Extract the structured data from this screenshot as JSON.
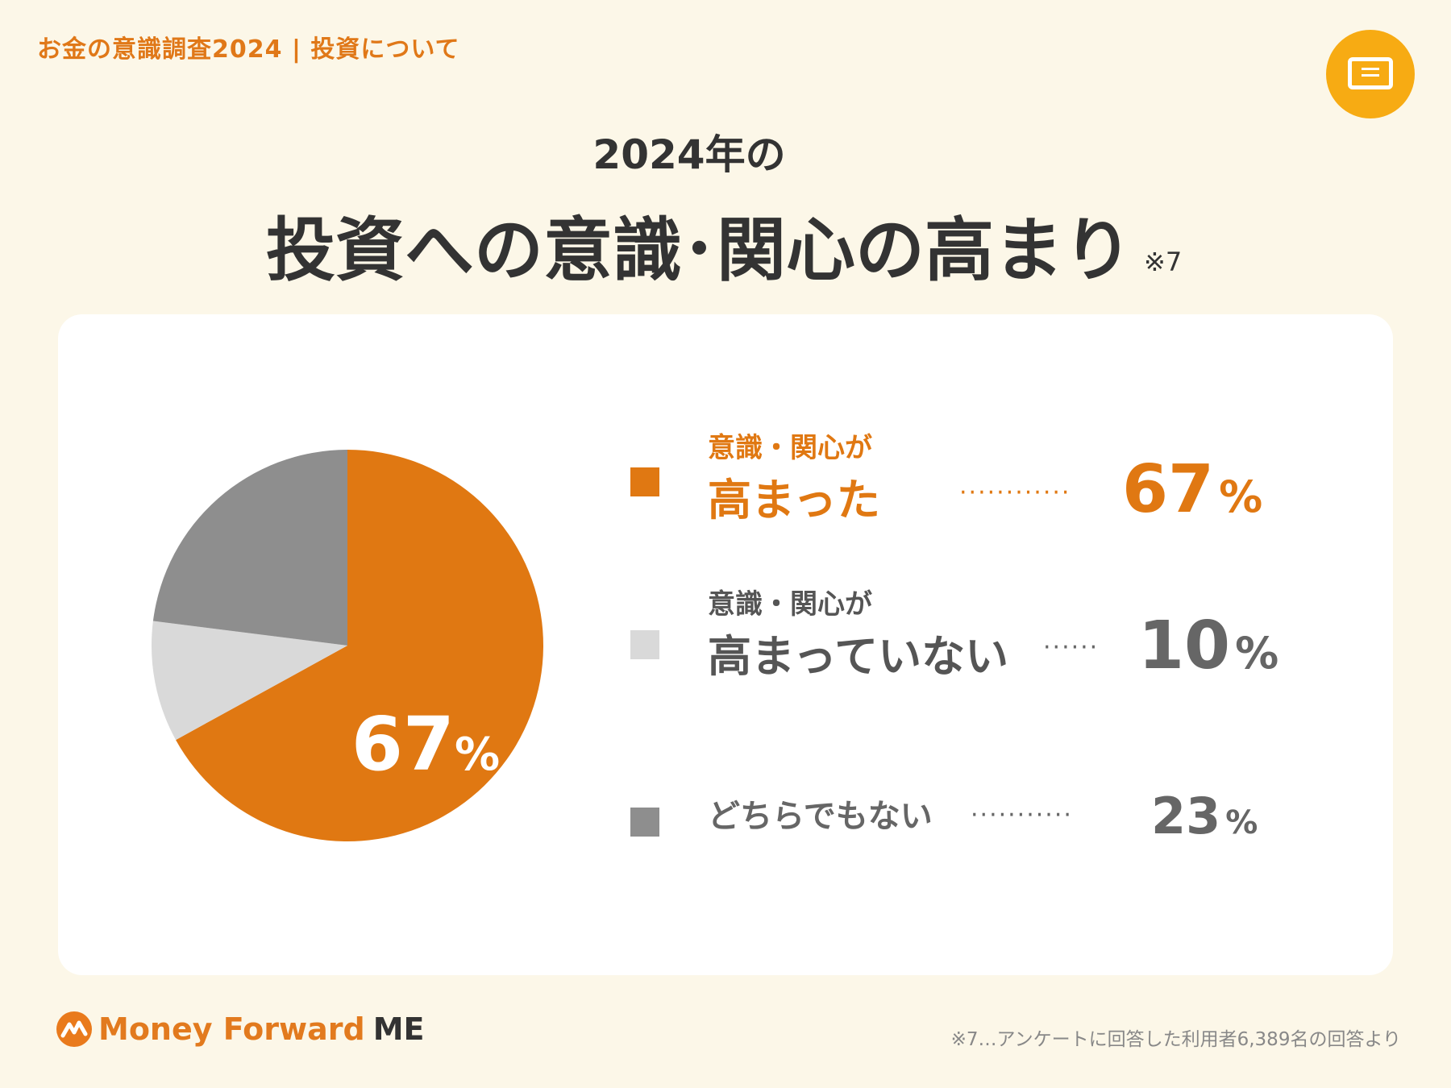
{
  "header": {
    "breadcrumb": "お金の意識調査2024 | 投資について",
    "icon": "screen-icon",
    "icon_color": "#f7ab13"
  },
  "title": {
    "sub": "2024年の",
    "main": "投資への意識･関心の高まり",
    "note": "※7"
  },
  "chart_data": {
    "type": "pie",
    "categories": [
      "意識・関心が高まった",
      "意識・関心が高まっていない",
      "どちらでもない"
    ],
    "values": [
      67,
      10,
      23
    ],
    "unit": "%",
    "colors": [
      "#e07812",
      "#d9d9d9",
      "#8e8e8e"
    ],
    "center_label": {
      "value": "67",
      "unit": "%"
    },
    "legend": [
      {
        "small": "意識・関心が",
        "big": "高まった",
        "dots": "············",
        "value": "67",
        "unit": "%"
      },
      {
        "small": "意識・関心が",
        "big": "高まっていない",
        "dots": "······",
        "value": "10",
        "unit": "%"
      },
      {
        "small": "",
        "big": "どちらでもない",
        "dots": "···········",
        "value": "23",
        "unit": "%"
      }
    ]
  },
  "footer": {
    "logo_text": "Money Forward",
    "logo_suffix": "ME",
    "note": "※7…アンケートに回答した利用者6,389名の回答より"
  }
}
